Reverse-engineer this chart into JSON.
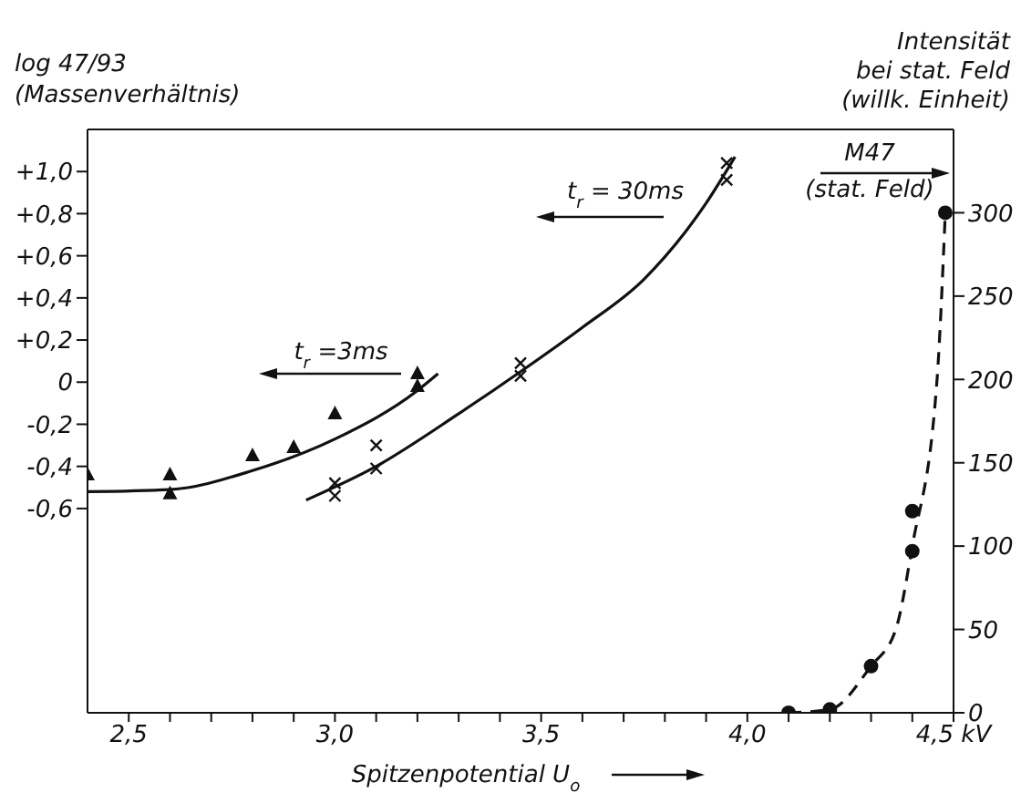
{
  "chart_data": {
    "type": "scatter",
    "xlabel": "Spitzenpotential U$_{o}$",
    "ylabel": "log 47/93\n(Massenverhältnis)",
    "y2label": "Intensität\nbei stat. Feld\n(willk. Einheit)",
    "xlim": [
      2.4,
      4.5
    ],
    "xticks": [
      {
        "value": 2.5,
        "label": "2,5"
      },
      {
        "value": 2.6,
        "label": null
      },
      {
        "value": 2.7,
        "label": null
      },
      {
        "value": 2.8,
        "label": null
      },
      {
        "value": 2.9,
        "label": null
      },
      {
        "value": 3.0,
        "label": "3,0"
      },
      {
        "value": 3.1,
        "label": null
      },
      {
        "value": 3.2,
        "label": null
      },
      {
        "value": 3.3,
        "label": null
      },
      {
        "value": 3.4,
        "label": null
      },
      {
        "value": 3.5,
        "label": "3,5"
      },
      {
        "value": 3.6,
        "label": null
      },
      {
        "value": 3.7,
        "label": null
      },
      {
        "value": 3.8,
        "label": null
      },
      {
        "value": 3.9,
        "label": null
      },
      {
        "value": 4.0,
        "label": "4,0"
      },
      {
        "value": 4.1,
        "label": null
      },
      {
        "value": 4.2,
        "label": null
      },
      {
        "value": 4.3,
        "label": null
      },
      {
        "value": 4.4,
        "label": null
      },
      {
        "value": 4.5,
        "label": "4,5 kV"
      }
    ],
    "ylim": [
      -1.57,
      1.2
    ],
    "yticks": [
      {
        "value": -0.6,
        "label": "-0,6"
      },
      {
        "value": -0.4,
        "label": "-0,4"
      },
      {
        "value": -0.2,
        "label": "-0,2"
      },
      0,
      {
        "value": 0.2,
        "label": "+0,2"
      },
      {
        "value": 0.4,
        "label": "+0,4"
      },
      {
        "value": 0.6,
        "label": "+0,6"
      },
      {
        "value": 0.8,
        "label": "+0,8"
      },
      {
        "value": 1.0,
        "label": "+1,0"
      }
    ],
    "y2lim": [
      0,
      350
    ],
    "y2ticks": [
      0,
      50,
      100,
      150,
      200,
      250,
      300
    ],
    "series": [
      {
        "marker": "triangle",
        "color": "#111111",
        "x": [
          2.4,
          2.6,
          2.6,
          2.8,
          2.9,
          3.0,
          3.2,
          3.2
        ],
        "values": [
          -0.44,
          -0.44,
          -0.53,
          -0.35,
          -0.31,
          -0.15,
          0.04,
          -0.02
        ]
      },
      {
        "type": "line",
        "line_style": "solid",
        "color": "#111111",
        "x": [
          2.4,
          2.6,
          2.8,
          3.0,
          3.2,
          3.25
        ],
        "values": [
          -0.52,
          -0.51,
          -0.42,
          -0.27,
          -0.04,
          0.04
        ]
      },
      {
        "marker": "cross",
        "color": "#111111",
        "x": [
          3.0,
          3.0,
          3.1,
          3.1,
          3.45,
          3.45,
          3.95,
          3.95
        ],
        "values": [
          -0.48,
          -0.54,
          -0.3,
          -0.41,
          0.09,
          0.03,
          1.04,
          0.96
        ]
      },
      {
        "type": "line",
        "line_style": "solid",
        "color": "#111111",
        "x": [
          2.93,
          3.1,
          3.3,
          3.45,
          3.6,
          3.75,
          3.9,
          3.97
        ],
        "values": [
          -0.56,
          -0.4,
          -0.15,
          0.05,
          0.26,
          0.49,
          0.85,
          1.07
        ]
      },
      {
        "marker": "circle",
        "color": "#111111",
        "axis": "y2",
        "x": [
          4.1,
          4.2,
          4.3,
          4.4,
          4.4,
          4.48
        ],
        "values": [
          0,
          2,
          28,
          97,
          121,
          300
        ]
      },
      {
        "type": "line",
        "line_style": "dashed",
        "color": "#111111",
        "axis": "y2",
        "x": [
          4.1,
          4.2,
          4.3,
          4.36,
          4.4,
          4.46,
          4.48
        ],
        "values": [
          0,
          2,
          28,
          50,
          100,
          200,
          300
        ]
      }
    ],
    "annotations": [
      "t$_{r}$ =3ms",
      "t$_{r}$ = 30ms",
      "M47\n(stat. Feld)"
    ]
  }
}
